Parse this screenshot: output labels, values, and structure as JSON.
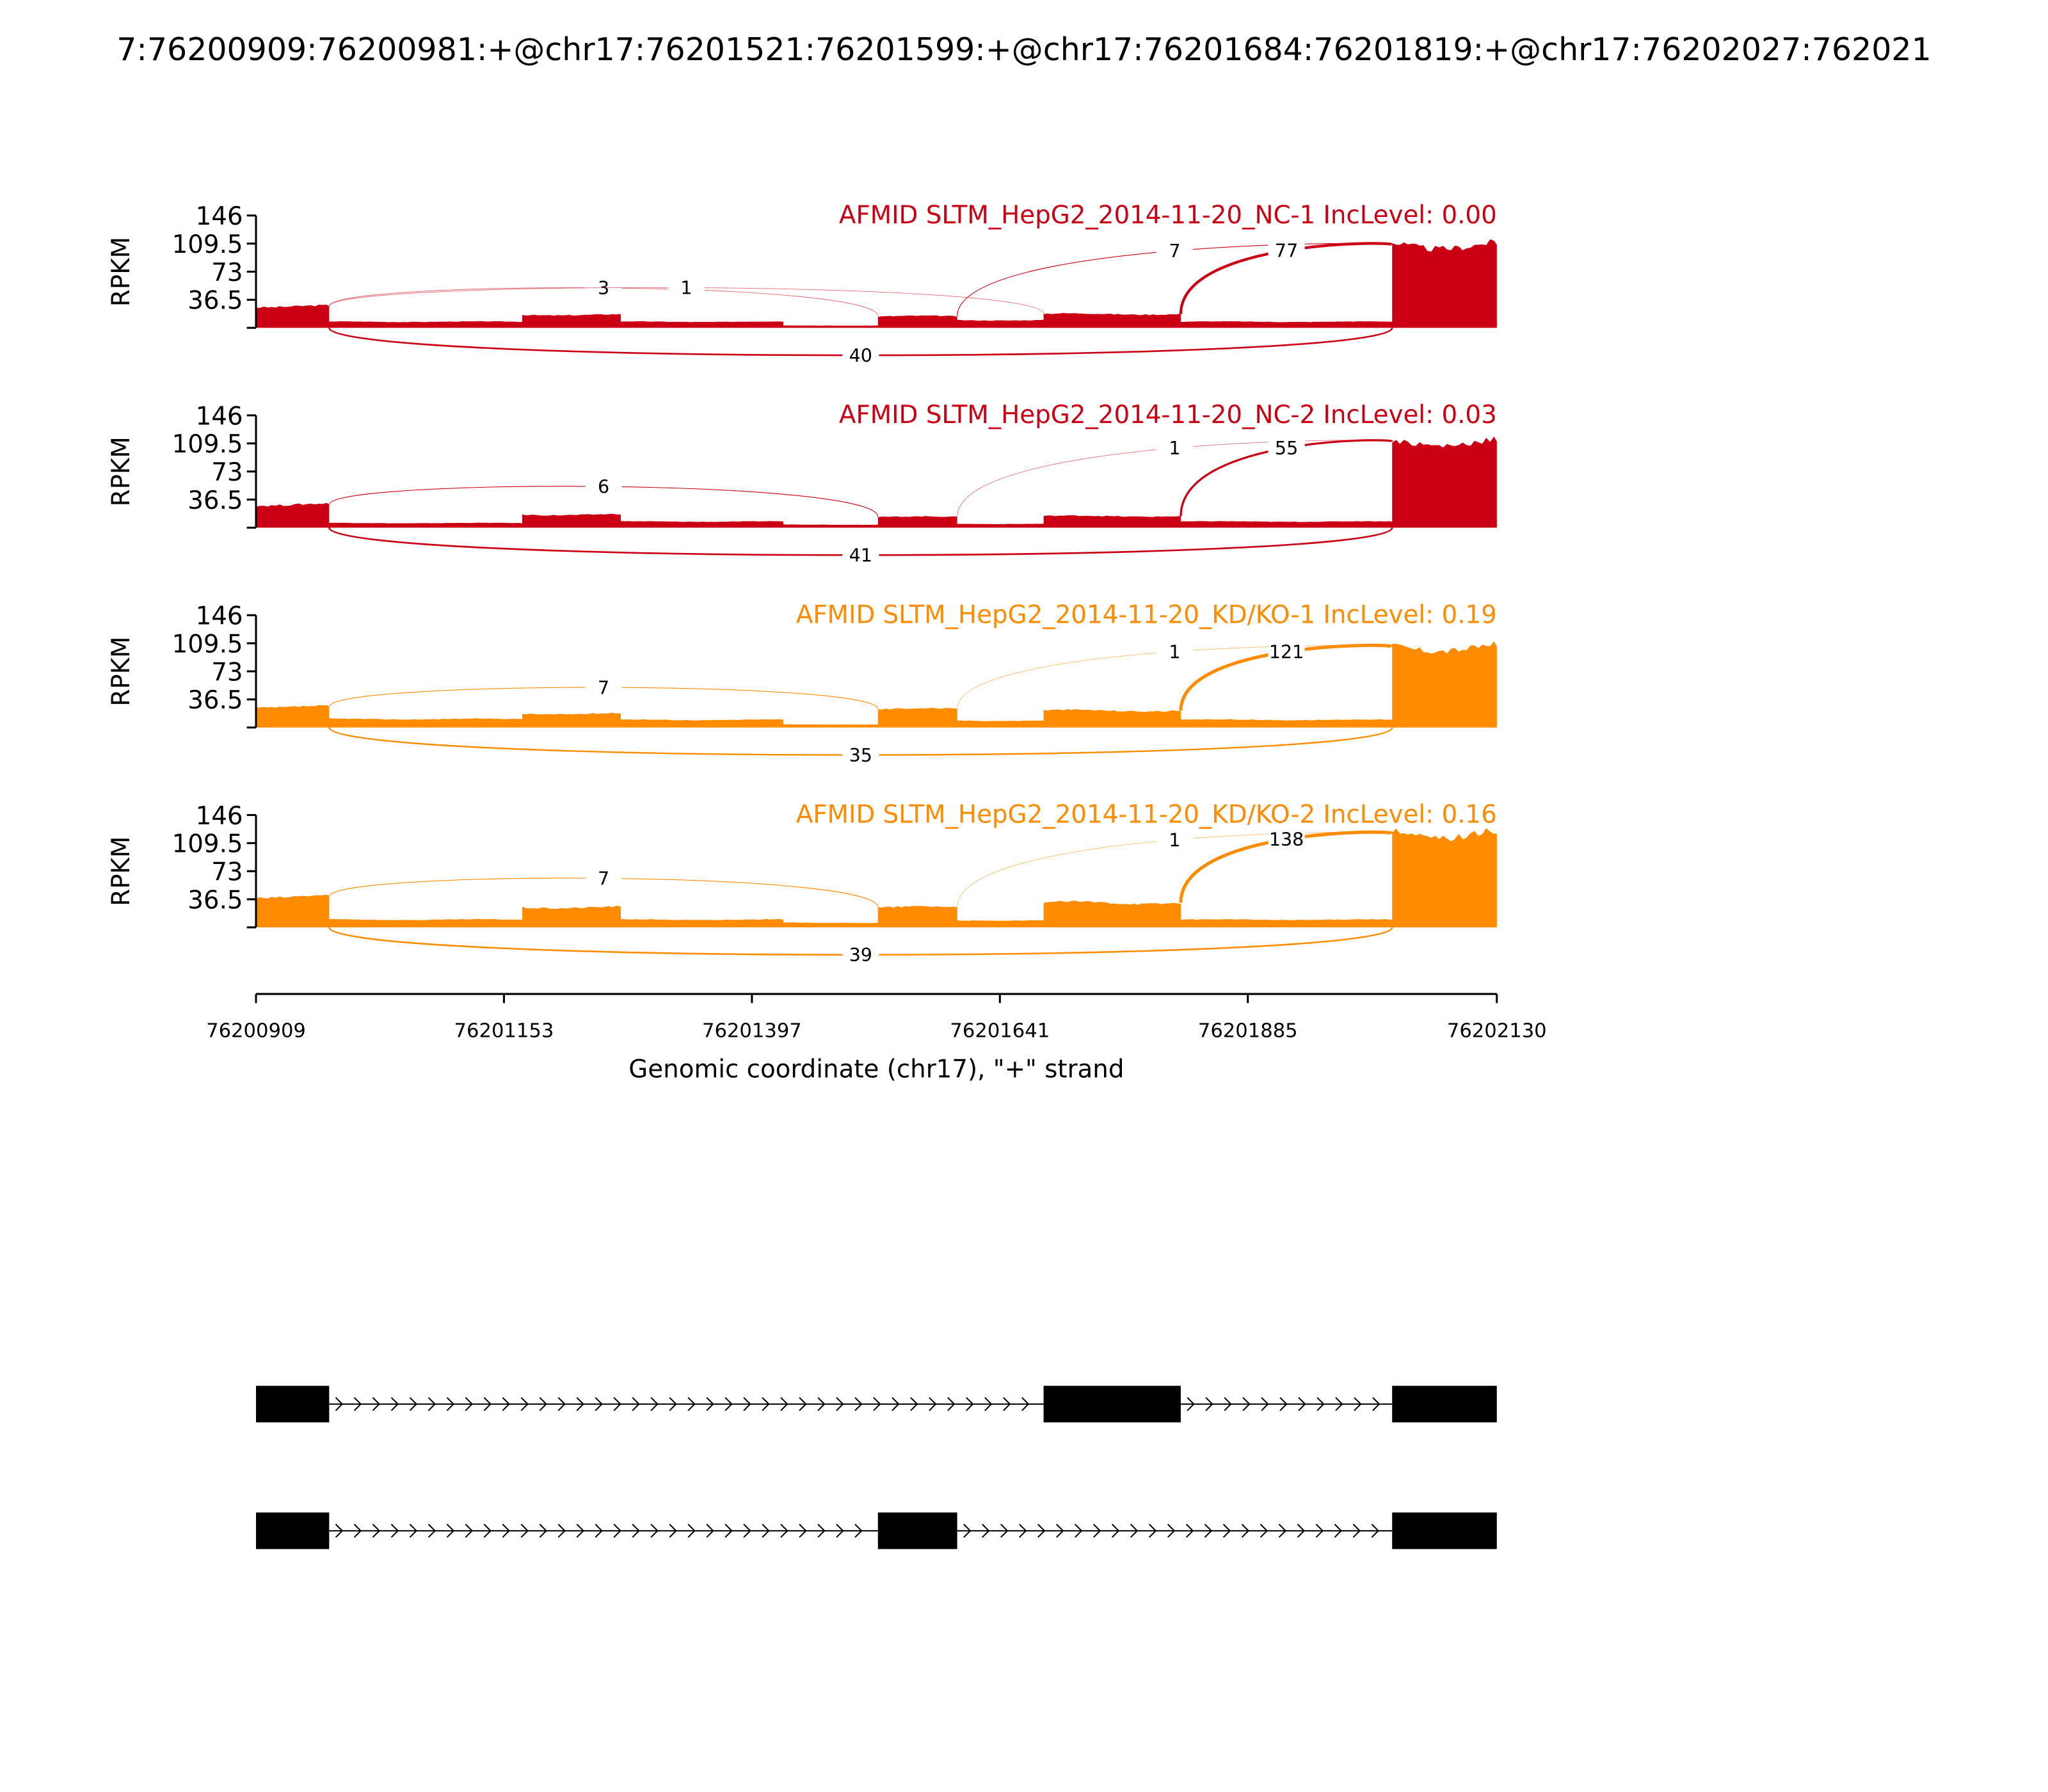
{
  "chart_data": {
    "type": "area",
    "title": "7:76200909:76200981:+@chr17:76201521:76201599:+@chr17:76201684:76201819:+@chr17:76202027:762021",
    "xlabel": "Genomic coordinate (chr17), \"+\" strand",
    "ylabel": "RPKM",
    "xlim": [
      76200909,
      76202130
    ],
    "ylim": [
      0,
      146
    ],
    "x_ticks": [
      "76200909",
      "76201153",
      "76201397",
      "76201641",
      "76201885",
      "76202130"
    ],
    "y_ticks": [
      "36.5",
      "73",
      "109.5",
      "146"
    ],
    "samples": [
      {
        "name": "AFMID SLTM_HepG2_2014-11-20_NC-1",
        "inc_level_label": "IncLevel: 0.00",
        "inc_level": 0.0,
        "color": "#cc0014",
        "coverage": [
          [
            76200909,
            76200981,
            28
          ],
          [
            76200981,
            76201171,
            8
          ],
          [
            76201171,
            76201268,
            17
          ],
          [
            76201268,
            76201428,
            8
          ],
          [
            76201428,
            76201521,
            3
          ],
          [
            76201521,
            76201599,
            15
          ],
          [
            76201599,
            76201684,
            10
          ],
          [
            76201684,
            76201819,
            18
          ],
          [
            76201819,
            76202027,
            8
          ],
          [
            76202027,
            76202130,
            108
          ]
        ],
        "junctions": [
          {
            "start": 76200981,
            "end": 76201521,
            "count": 3,
            "side": "above"
          },
          {
            "start": 76200981,
            "end": 76201684,
            "count": 1,
            "side": "above"
          },
          {
            "start": 76201599,
            "end": 76202027,
            "count": 7,
            "side": "above"
          },
          {
            "start": 76201819,
            "end": 76202027,
            "count": 77,
            "side": "above"
          },
          {
            "start": 76200981,
            "end": 76202027,
            "count": 40,
            "side": "below"
          }
        ]
      },
      {
        "name": "AFMID SLTM_HepG2_2014-11-20_NC-2",
        "inc_level_label": "IncLevel: 0.03",
        "inc_level": 0.03,
        "color": "#cc0014",
        "coverage": [
          [
            76200909,
            76200981,
            30
          ],
          [
            76200981,
            76201171,
            6
          ],
          [
            76201171,
            76201268,
            17
          ],
          [
            76201268,
            76201428,
            8
          ],
          [
            76201428,
            76201521,
            4
          ],
          [
            76201521,
            76201599,
            14
          ],
          [
            76201599,
            76201684,
            5
          ],
          [
            76201684,
            76201819,
            15
          ],
          [
            76201819,
            76202027,
            8
          ],
          [
            76202027,
            76202130,
            112
          ]
        ],
        "junctions": [
          {
            "start": 76200981,
            "end": 76201521,
            "count": 6,
            "side": "above"
          },
          {
            "start": 76201599,
            "end": 76202027,
            "count": 1,
            "side": "above"
          },
          {
            "start": 76201819,
            "end": 76202027,
            "count": 55,
            "side": "above"
          },
          {
            "start": 76200981,
            "end": 76202027,
            "count": 41,
            "side": "below"
          }
        ]
      },
      {
        "name": "AFMID SLTM_HepG2_2014-11-20_KD/KO-1",
        "inc_level_label": "IncLevel: 0.19",
        "inc_level": 0.19,
        "color": "#ff8c00",
        "coverage": [
          [
            76200909,
            76200981,
            27
          ],
          [
            76200981,
            76201171,
            11
          ],
          [
            76201171,
            76201268,
            18
          ],
          [
            76201268,
            76201428,
            10
          ],
          [
            76201428,
            76201521,
            4
          ],
          [
            76201521,
            76201599,
            24
          ],
          [
            76201599,
            76201684,
            9
          ],
          [
            76201684,
            76201819,
            22
          ],
          [
            76201819,
            76202027,
            10
          ],
          [
            76202027,
            76202130,
            105
          ]
        ],
        "junctions": [
          {
            "start": 76200981,
            "end": 76201521,
            "count": 7,
            "side": "above"
          },
          {
            "start": 76201599,
            "end": 76202027,
            "count": 1,
            "side": "above"
          },
          {
            "start": 76201819,
            "end": 76202027,
            "count": 121,
            "side": "above"
          },
          {
            "start": 76200981,
            "end": 76202027,
            "count": 35,
            "side": "below"
          }
        ]
      },
      {
        "name": "AFMID SLTM_HepG2_2014-11-20_KD/KO-2",
        "inc_level_label": "IncLevel: 0.16",
        "inc_level": 0.16,
        "color": "#ff8c00",
        "coverage": [
          [
            76200909,
            76200981,
            40
          ],
          [
            76200981,
            76201171,
            10
          ],
          [
            76201171,
            76201268,
            26
          ],
          [
            76201268,
            76201428,
            10
          ],
          [
            76201428,
            76201521,
            6
          ],
          [
            76201521,
            76201599,
            26
          ],
          [
            76201599,
            76201684,
            9
          ],
          [
            76201684,
            76201819,
            32
          ],
          [
            76201819,
            76202027,
            10
          ],
          [
            76202027,
            76202130,
            122
          ]
        ],
        "junctions": [
          {
            "start": 76200981,
            "end": 76201521,
            "count": 7,
            "side": "above"
          },
          {
            "start": 76201599,
            "end": 76202027,
            "count": 1,
            "side": "above"
          },
          {
            "start": 76201819,
            "end": 76202027,
            "count": 138,
            "side": "above"
          },
          {
            "start": 76200981,
            "end": 76202027,
            "count": 39,
            "side": "below"
          }
        ]
      }
    ],
    "isoforms": [
      {
        "exons": [
          [
            76200909,
            76200981
          ],
          [
            76201684,
            76201819
          ],
          [
            76202027,
            76202130
          ]
        ]
      },
      {
        "exons": [
          [
            76200909,
            76200981
          ],
          [
            76201521,
            76201599
          ],
          [
            76202027,
            76202130
          ]
        ]
      }
    ]
  }
}
